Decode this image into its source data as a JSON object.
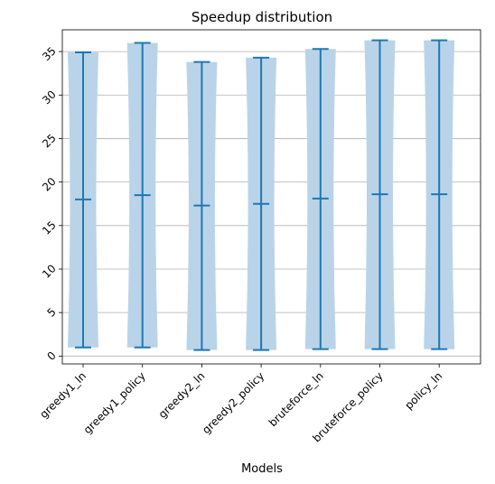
{
  "chart_data": {
    "type": "violin",
    "title": "Speedup distribution",
    "xlabel": "Models",
    "ylabel": "",
    "categories": [
      "greedy1_ln",
      "greedy1_policy",
      "greedy2_ln",
      "greedy2_policy",
      "bruteforce_ln",
      "bruteforce_policy",
      "policy_ln"
    ],
    "series": [
      {
        "min": 1.0,
        "mean": 18.0,
        "max": 34.9
      },
      {
        "min": 1.0,
        "mean": 18.5,
        "max": 36.0
      },
      {
        "min": 0.7,
        "mean": 17.3,
        "max": 33.8
      },
      {
        "min": 0.7,
        "mean": 17.5,
        "max": 34.3
      },
      {
        "min": 0.8,
        "mean": 18.1,
        "max": 35.3
      },
      {
        "min": 0.8,
        "mean": 18.6,
        "max": 36.3
      },
      {
        "min": 0.8,
        "mean": 18.6,
        "max": 36.3
      }
    ],
    "ylim": [
      -0.9,
      37.5
    ],
    "yticks": [
      0,
      5,
      10,
      15,
      20,
      25,
      30,
      35
    ],
    "grid": "horizontal",
    "colors": {
      "body": "#b9d4e8",
      "lines": "#1f77b4",
      "grid": "#b0b0b0"
    }
  }
}
